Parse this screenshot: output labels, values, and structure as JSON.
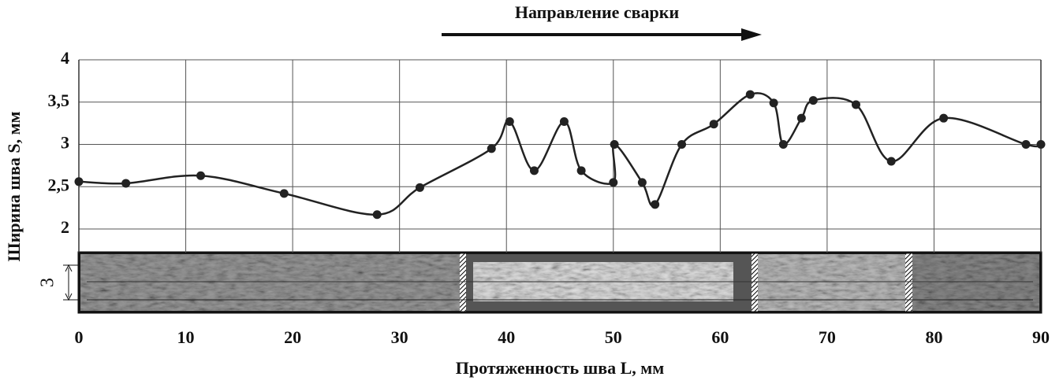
{
  "chart_data": {
    "type": "scatter",
    "annotations": [
      "Направление сварки",
      "3"
    ],
    "xlabel": "Протяженность шва L, мм",
    "ylabel": "Ширина шва S, мм",
    "x": [
      0,
      4.4,
      11.4,
      19.2,
      27.9,
      31.9,
      38.6,
      40.3,
      42.6,
      45.4,
      47.0,
      50.0,
      50.1,
      52.7,
      53.9,
      56.4,
      59.4,
      62.8,
      65.0,
      65.9,
      67.6,
      68.7,
      72.7,
      76.0,
      80.9,
      88.6,
      90
    ],
    "values": [
      2.56,
      2.54,
      2.63,
      2.42,
      2.17,
      2.49,
      2.95,
      3.27,
      2.69,
      3.27,
      2.69,
      2.55,
      3.0,
      2.55,
      2.29,
      3.0,
      3.24,
      3.59,
      3.49,
      3.0,
      3.31,
      3.52,
      3.47,
      2.8,
      3.31,
      3.0,
      3.0
    ],
    "color": "#222222",
    "xlim": [
      0,
      90
    ],
    "xticks": [
      0,
      10,
      20,
      30,
      40,
      50,
      60,
      70,
      80,
      90
    ],
    "ylim": [
      2,
      4
    ],
    "yticks": [
      2,
      {
        "value": 2.5,
        "label": "2,5"
      },
      3,
      {
        "value": 3.5,
        "label": "3,5"
      },
      4
    ],
    "grid": true
  }
}
